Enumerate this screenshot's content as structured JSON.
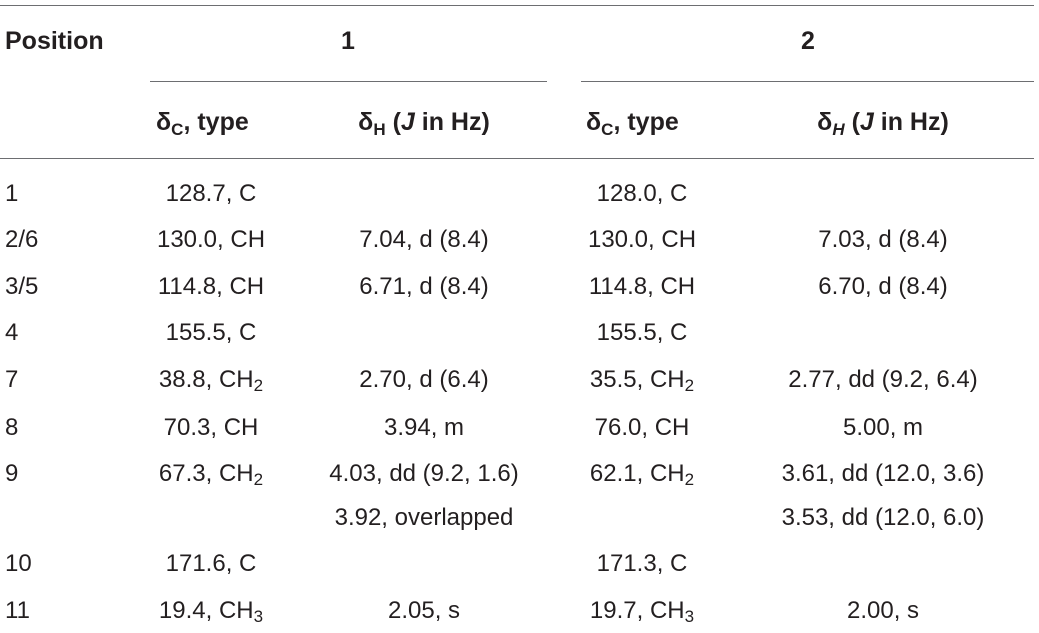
{
  "table": {
    "header": {
      "position": "Position",
      "compound1": "1",
      "compound2": "2",
      "delta_symbol": "δ",
      "c_sub": "C",
      "h_sub": "H",
      "type_label": ", type",
      "j_label": "J",
      "in_hz": " in Hz)",
      "open_paren": " ("
    },
    "rows": [
      {
        "pos": "1",
        "c1": "128.7, C",
        "c1_sub": "",
        "h1": "",
        "h1b": "",
        "c2": "128.0, C",
        "c2_sub": "",
        "h2": "",
        "h2b": ""
      },
      {
        "pos": "2/6",
        "c1": "130.0, CH",
        "c1_sub": "",
        "h1": "7.04, d (8.4)",
        "h1b": "",
        "c2": "130.0, CH",
        "c2_sub": "",
        "h2": "7.03, d (8.4)",
        "h2b": ""
      },
      {
        "pos": "3/5",
        "c1": "114.8, CH",
        "c1_sub": "",
        "h1": "6.71, d (8.4)",
        "h1b": "",
        "c2": "114.8, CH",
        "c2_sub": "",
        "h2": "6.70, d (8.4)",
        "h2b": ""
      },
      {
        "pos": "4",
        "c1": "155.5, C",
        "c1_sub": "",
        "h1": "",
        "h1b": "",
        "c2": "155.5, C",
        "c2_sub": "",
        "h2": "",
        "h2b": ""
      },
      {
        "pos": "7",
        "c1": "38.8, CH",
        "c1_sub": "2",
        "h1": "2.70, d (6.4)",
        "h1b": "",
        "c2": "35.5, CH",
        "c2_sub": "2",
        "h2": "2.77, dd (9.2, 6.4)",
        "h2b": ""
      },
      {
        "pos": "8",
        "c1": "70.3, CH",
        "c1_sub": "",
        "h1": "3.94, m",
        "h1b": "",
        "c2": "76.0, CH",
        "c2_sub": "",
        "h2": "5.00, m",
        "h2b": ""
      },
      {
        "pos": "9",
        "c1": "67.3, CH",
        "c1_sub": "2",
        "h1": "4.03, dd (9.2, 1.6)",
        "h1b": "3.92, overlapped",
        "c2": "62.1, CH",
        "c2_sub": "2",
        "h2": "3.61, dd (12.0, 3.6)",
        "h2b": "3.53, dd (12.0, 6.0)"
      },
      {
        "pos": "10",
        "c1": "171.6, C",
        "c1_sub": "",
        "h1": "",
        "h1b": "",
        "c2": "171.3, C",
        "c2_sub": "",
        "h2": "",
        "h2b": ""
      },
      {
        "pos": "11",
        "c1": "19.4, CH",
        "c1_sub": "3",
        "h1": "2.05, s",
        "h1b": "",
        "c2": "19.7, CH",
        "c2_sub": "3",
        "h2": "2.00, s",
        "h2b": ""
      }
    ]
  }
}
